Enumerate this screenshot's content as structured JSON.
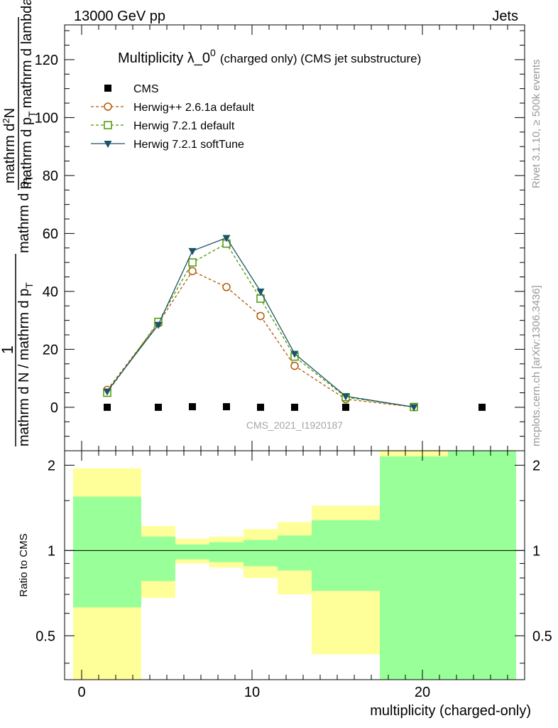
{
  "header": {
    "left": "13000 GeV pp",
    "right": "Jets",
    "side_rivet": "Rivet 3.1.10, ≥ 500k events",
    "side_mcplots": "mcplots.cern.ch [arXiv:1306.3436]"
  },
  "colors": {
    "cms": "#000000",
    "herwigpp": "#b35900",
    "herwig721": "#4d9900",
    "softtune": "#1a5466",
    "band_inner": "#99ff99",
    "band_outer": "#ffff99"
  },
  "chart_data": [
    {
      "type": "line",
      "title": "Multiplicity λ_0",
      "title_sup": "0",
      "title_suffix": "(charged only) (CMS jet substructure)",
      "ylabel": "1 / mathrm d N / mathrm d p_T mathrm d p_T mathrm d lambda mathrm d²N",
      "ylabel_parts": {
        "frac_num": "1",
        "frac_den": "mathrm d N / mathrm d p",
        "frac_den_sub": "T",
        "lead": "mathrm d p",
        "lead_sub": "T",
        "num_a": "mathrm d",
        "num_sup": "2",
        "num_b": "N",
        "den_a": "mathrm d p",
        "den_sub": "T",
        "den_b": "mathrm d lambda"
      },
      "xlim": [
        -1,
        26
      ],
      "ylim": [
        -15,
        132
      ],
      "yticks": [
        0,
        20,
        40,
        60,
        80,
        100,
        120
      ],
      "watermark": "CMS_2021_I1920187",
      "legend": [
        "CMS",
        "Herwig++ 2.6.1a default",
        "Herwig 7.2.1 default",
        "Herwig 7.2.1 softTune"
      ],
      "series": [
        {
          "name": "CMS",
          "x": [
            1.5,
            4.5,
            6.5,
            8.5,
            10.5,
            12.5,
            15.5,
            19.5,
            23.5
          ],
          "y": [
            0,
            0,
            0.2,
            0.2,
            0,
            0,
            0,
            0,
            0
          ]
        },
        {
          "name": "Herwig++ 2.6.1a default",
          "x": [
            1.5,
            4.5,
            6.5,
            8.5,
            10.5,
            12.5,
            15.5,
            19.5
          ],
          "y": [
            6,
            29,
            47,
            41.5,
            31.5,
            14.3,
            2.8,
            0.1
          ]
        },
        {
          "name": "Herwig 7.2.1 default",
          "x": [
            1.5,
            4.5,
            6.5,
            8.5,
            10.5,
            12.5,
            15.5,
            19.5
          ],
          "y": [
            5,
            29.5,
            50,
            56.5,
            37.5,
            17.5,
            3.5,
            0.1
          ]
        },
        {
          "name": "Herwig 7.2.1 softTune",
          "x": [
            1.5,
            4.5,
            6.5,
            8.5,
            10.5,
            12.5,
            15.5,
            19.5
          ],
          "y": [
            5.5,
            28.5,
            54,
            58.5,
            40,
            18.5,
            3.8,
            0.1
          ]
        }
      ]
    },
    {
      "type": "area",
      "ylabel": "Ratio to CMS",
      "xlabel": "multiplicity (charged-only)",
      "xlim": [
        -1,
        26
      ],
      "ylim": [
        0.35,
        2.25
      ],
      "yticks": [
        0.5,
        1,
        2
      ],
      "xticks": [
        0,
        10,
        20
      ],
      "bins": [
        {
          "lo": -0.5,
          "hi": 3.5,
          "inner": [
            0.63,
            1.55
          ],
          "outer": [
            0.35,
            1.95
          ]
        },
        {
          "lo": 3.5,
          "hi": 5.5,
          "inner": [
            0.78,
            1.12
          ],
          "outer": [
            0.68,
            1.22
          ]
        },
        {
          "lo": 5.5,
          "hi": 7.5,
          "inner": [
            0.93,
            1.05
          ],
          "outer": [
            0.9,
            1.1
          ]
        },
        {
          "lo": 7.5,
          "hi": 9.5,
          "inner": [
            0.91,
            1.07
          ],
          "outer": [
            0.87,
            1.12
          ]
        },
        {
          "lo": 9.5,
          "hi": 11.5,
          "inner": [
            0.88,
            1.09
          ],
          "outer": [
            0.8,
            1.19
          ]
        },
        {
          "lo": 11.5,
          "hi": 13.5,
          "inner": [
            0.85,
            1.13
          ],
          "outer": [
            0.7,
            1.26
          ]
        },
        {
          "lo": 13.5,
          "hi": 17.5,
          "inner": [
            0.72,
            1.28
          ],
          "outer": [
            0.43,
            1.44
          ]
        },
        {
          "lo": 17.5,
          "hi": 21.5,
          "inner": [
            0.35,
            2.15
          ],
          "outer": [
            0.35,
            2.25
          ]
        },
        {
          "lo": 21.5,
          "hi": 25.5,
          "inner": [
            0.35,
            2.25
          ],
          "outer": [
            0.35,
            2.25
          ]
        }
      ]
    }
  ]
}
